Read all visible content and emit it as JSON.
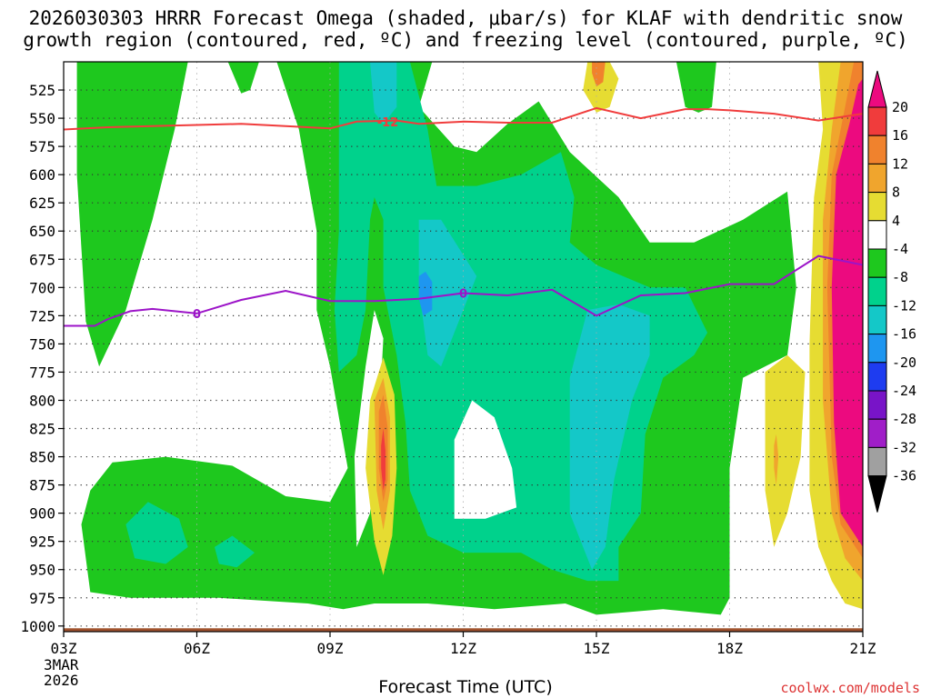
{
  "title_line1": "2026030303 HRRR Forecast Omega (shaded, μbar/s) for KLAF with dendritic snow",
  "title_line2": "growth region (contoured, red, ºC) and freezing level (contoured, purple, ºC)",
  "watermark": "coolwx.com/models",
  "chart_data": {
    "type": "contour",
    "xlabel": "Forecast Time (UTC)",
    "ylabel": "",
    "x_ticks": [
      "03Z",
      "06Z",
      "09Z",
      "12Z",
      "15Z",
      "18Z",
      "21Z"
    ],
    "x_range_hours": [
      3,
      21
    ],
    "date_label": [
      "3MAR",
      "2026"
    ],
    "y_ticks": [
      525,
      550,
      575,
      600,
      625,
      650,
      675,
      700,
      725,
      750,
      775,
      800,
      825,
      850,
      875,
      900,
      925,
      950,
      975,
      1000
    ],
    "y_range_mb": [
      500,
      1005
    ],
    "colorbar_levels": [
      20,
      16,
      12,
      8,
      4,
      -4,
      -8,
      -12,
      -16,
      -20,
      -24,
      -28,
      -32,
      -36
    ],
    "colorbar_colors": [
      "#ec0a7f",
      "#f03c3c",
      "#f0822d",
      "#f0a52d",
      "#e6dc32",
      "#ffffff",
      "#1ec81e",
      "#00d28c",
      "#14c8c8",
      "#1e96f0",
      "#1e3cf0",
      "#7814c8",
      "#a01ec8",
      "#a0a0a0",
      "#000000"
    ],
    "series": [
      {
        "name": "-12",
        "color": "#f03c3c",
        "points": [
          [
            3.0,
            560
          ],
          [
            4.0,
            558
          ],
          [
            5.0,
            557
          ],
          [
            6.0,
            556
          ],
          [
            7.0,
            555
          ],
          [
            8.0,
            557
          ],
          [
            9.0,
            559
          ],
          [
            9.6,
            553
          ],
          [
            10.5,
            552
          ],
          [
            11.0,
            555
          ],
          [
            12.0,
            553
          ],
          [
            13.0,
            554
          ],
          [
            14.0,
            554
          ],
          [
            15.0,
            541
          ],
          [
            16.0,
            550
          ],
          [
            17.0,
            542
          ],
          [
            17.5,
            542
          ],
          [
            18.0,
            543
          ],
          [
            19.0,
            546
          ],
          [
            20.0,
            552
          ],
          [
            21.0,
            546
          ]
        ]
      },
      {
        "name": "0",
        "color": "#9c14c8",
        "points": [
          [
            3.0,
            734
          ],
          [
            3.7,
            734
          ],
          [
            4.0,
            728
          ],
          [
            4.5,
            721
          ],
          [
            5.0,
            719
          ],
          [
            6.0,
            723
          ],
          [
            7.0,
            711
          ],
          [
            8.0,
            703
          ],
          [
            9.0,
            712
          ],
          [
            10.0,
            712
          ],
          [
            11.0,
            710
          ],
          [
            12.0,
            705
          ],
          [
            13.0,
            707
          ],
          [
            14.0,
            702
          ],
          [
            15.0,
            725
          ],
          [
            16.0,
            707
          ],
          [
            17.0,
            705
          ],
          [
            18.0,
            697
          ],
          [
            19.0,
            697
          ],
          [
            20.0,
            672
          ],
          [
            21.0,
            680
          ]
        ]
      }
    ],
    "colors": {
      "green": "#1ec81e",
      "seagreen": "#00d28c",
      "cyan": "#14c8c8",
      "blue": "#1e96f0",
      "yellow": "#e6dc32",
      "lightorange": "#f0a52d",
      "orange": "#f0822d",
      "red": "#f03c3c",
      "magenta": "#ec0a7f",
      "ground": "#a0522d"
    }
  }
}
